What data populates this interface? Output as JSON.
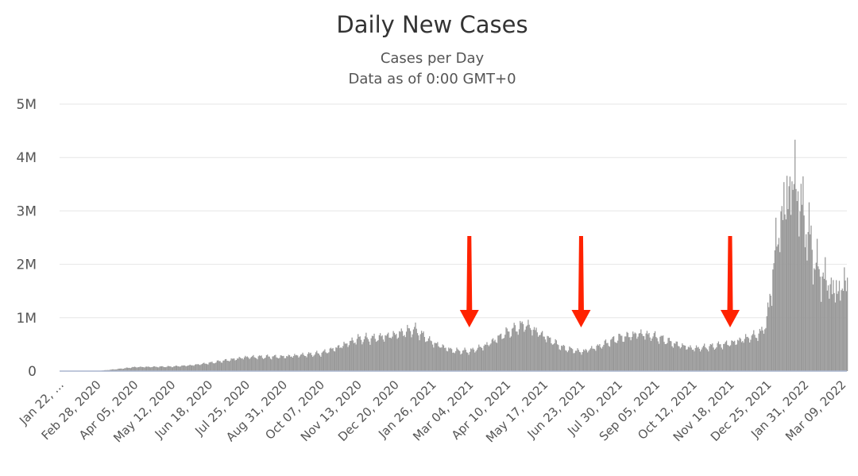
{
  "chart_data": {
    "type": "bar",
    "title": "Daily New Cases",
    "subtitle_lines": [
      "Cases per Day",
      "Data as of 0:00 GMT+0"
    ],
    "xlabel": "",
    "ylabel": "",
    "ylim": [
      0,
      5000000
    ],
    "yticks": [
      {
        "value": 0,
        "label": "0"
      },
      {
        "value": 1000000,
        "label": "1M"
      },
      {
        "value": 2000000,
        "label": "2M"
      },
      {
        "value": 3000000,
        "label": "3M"
      },
      {
        "value": 4000000,
        "label": "4M"
      },
      {
        "value": 5000000,
        "label": "5M"
      }
    ],
    "x_range": [
      "Jan 22, 2020",
      "Mar 14, 2022"
    ],
    "x_tick_labels": [
      "Jan 22, ...",
      "Feb 28, 2020",
      "Apr 05, 2020",
      "May 12, 2020",
      "Jun 18, 2020",
      "Jul 25, 2020",
      "Aug 31, 2020",
      "Oct 07, 2020",
      "Nov 13, 2020",
      "Dec 20, 2020",
      "Jan 26, 2021",
      "Mar 04, 2021",
      "Apr 10, 2021",
      "May 17, 2021",
      "Jun 23, 2021",
      "Jul 30, 2021",
      "Sep 05, 2021",
      "Oct 12, 2021",
      "Nov 18, 2021",
      "Dec 25, 2021",
      "Jan 31, 2022",
      "Mar 09, 2022"
    ],
    "bar_color": "#999999",
    "grid": true,
    "legend": "none",
    "annotations": [
      {
        "type": "arrow",
        "color": "#ff2200",
        "x": "Mar 04, 2021",
        "direction": "down"
      },
      {
        "type": "arrow",
        "color": "#ff2200",
        "x": "Jun 23, 2021",
        "direction": "down"
      },
      {
        "type": "arrow",
        "color": "#ff2200",
        "x": "Nov 18, 2021",
        "direction": "down"
      }
    ],
    "series": [
      {
        "points": [
          [
            "Jan 22, 2020",
            0
          ],
          [
            "Feb 28, 2020",
            2000
          ],
          [
            "Mar 20, 2020",
            40000
          ],
          [
            "Apr 05, 2020",
            75000
          ],
          [
            "May 12, 2020",
            85000
          ],
          [
            "Jun 01, 2020",
            110000
          ],
          [
            "Jun 18, 2020",
            150000
          ],
          [
            "Jul 25, 2020",
            260000
          ],
          [
            "Aug 31, 2020",
            270000
          ],
          [
            "Oct 07, 2020",
            330000
          ],
          [
            "Oct 25, 2020",
            450000
          ],
          [
            "Nov 13, 2020",
            600000
          ],
          [
            "Nov 28, 2020",
            610000
          ],
          [
            "Dec 20, 2020",
            680000
          ],
          [
            "Jan 08, 2021",
            780000
          ],
          [
            "Jan 26, 2021",
            530000
          ],
          [
            "Feb 15, 2021",
            380000
          ],
          [
            "Mar 04, 2021",
            370000
          ],
          [
            "Mar 20, 2021",
            480000
          ],
          [
            "Apr 10, 2021",
            720000
          ],
          [
            "Apr 28, 2021",
            870000
          ],
          [
            "May 17, 2021",
            650000
          ],
          [
            "Jun 05, 2021",
            430000
          ],
          [
            "Jun 23, 2021",
            360000
          ],
          [
            "Jul 10, 2021",
            460000
          ],
          [
            "Jul 30, 2021",
            620000
          ],
          [
            "Aug 20, 2021",
            700000
          ],
          [
            "Sep 05, 2021",
            640000
          ],
          [
            "Sep 25, 2021",
            500000
          ],
          [
            "Oct 12, 2021",
            420000
          ],
          [
            "Oct 28, 2021",
            450000
          ],
          [
            "Nov 18, 2021",
            520000
          ],
          [
            "Dec 05, 2021",
            620000
          ],
          [
            "Dec 18, 2021",
            700000
          ],
          [
            "Dec 25, 2021",
            1000000
          ],
          [
            "Jan 01, 2022",
            2200000
          ],
          [
            "Jan 10, 2022",
            3100000
          ],
          [
            "Jan 20, 2022",
            3600000
          ],
          [
            "Jan 31, 2022",
            2800000
          ],
          [
            "Feb 12, 2022",
            1900000
          ],
          [
            "Mar 01, 2022",
            1500000
          ],
          [
            "Mar 09, 2022",
            1550000
          ],
          [
            "Mar 14, 2022",
            1700000
          ]
        ]
      }
    ]
  }
}
